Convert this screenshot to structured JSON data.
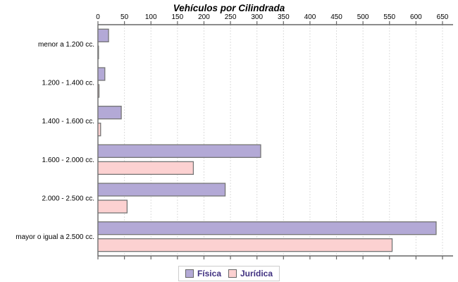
{
  "chart_data": {
    "type": "bar",
    "orientation": "horizontal",
    "title": "Vehículos por Cilindrada",
    "categories": [
      "menor a 1.200 cc.",
      "1.200 - 1.400 cc.",
      "1.400 - 1.600 cc.",
      "1.600 - 2.000 cc.",
      "2.000 - 2.500 cc.",
      "mayor o igual a 2.500 cc."
    ],
    "series": [
      {
        "name": "Física",
        "color": "#b3a9d6",
        "values": [
          20,
          13,
          44,
          307,
          240,
          638
        ]
      },
      {
        "name": "Jurídica",
        "color": "#fcd1d1",
        "values": [
          1,
          2,
          5,
          180,
          55,
          555
        ]
      }
    ],
    "xlim": [
      0,
      650
    ],
    "x_ticks": [
      0,
      50,
      100,
      150,
      200,
      250,
      300,
      350,
      400,
      450,
      500,
      550,
      600,
      650
    ],
    "grid": "vertical dashed gridlines at each x tick",
    "legend_position": "bottom-center",
    "colors": {
      "bar_border": "#757575",
      "axis": "#666666",
      "gridline": "#dcdcdc",
      "tick_label": "#000000",
      "category_label": "#000000",
      "title": "#000000",
      "legend_border": "#cccccc",
      "legend_text": "#3f3080",
      "background": "#ffffff"
    }
  }
}
